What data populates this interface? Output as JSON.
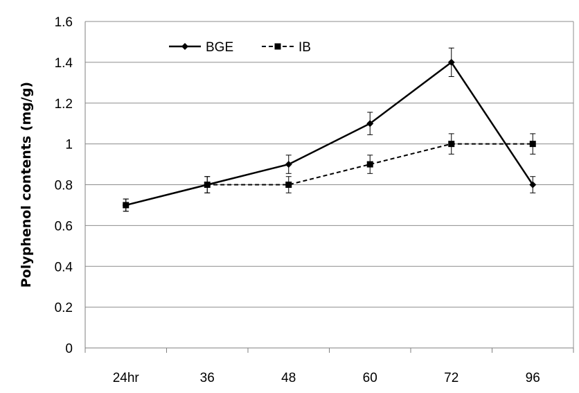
{
  "chart_data": {
    "type": "line",
    "categories": [
      "24hr",
      "36",
      "48",
      "60",
      "72",
      "96"
    ],
    "ylabel": "Polyphenol contents (mg/g)",
    "xlabel": "",
    "title": "",
    "ylim": [
      0,
      1.6
    ],
    "ytick_step": 0.2,
    "ytick_labels": [
      "0",
      "0.2",
      "0.4",
      "0.6",
      "0.8",
      "1",
      "1.2",
      "1.4",
      "1.6"
    ],
    "grid": "horizontal",
    "legend_position": "top-left",
    "series": [
      {
        "name": "BGE",
        "marker": "diamond",
        "line_style": "solid",
        "color": "#000000",
        "values": [
          0.7,
          0.8,
          0.9,
          1.1,
          1.4,
          0.8
        ],
        "errors": [
          0.03,
          0.04,
          0.045,
          0.055,
          0.07,
          0.04
        ]
      },
      {
        "name": "IB",
        "marker": "square",
        "line_style": "dashed",
        "color": "#000000",
        "values": [
          0.7,
          0.8,
          0.8,
          0.9,
          1.0,
          1.0
        ],
        "errors": [
          0.03,
          0.04,
          0.04,
          0.045,
          0.05,
          0.05
        ]
      }
    ]
  }
}
